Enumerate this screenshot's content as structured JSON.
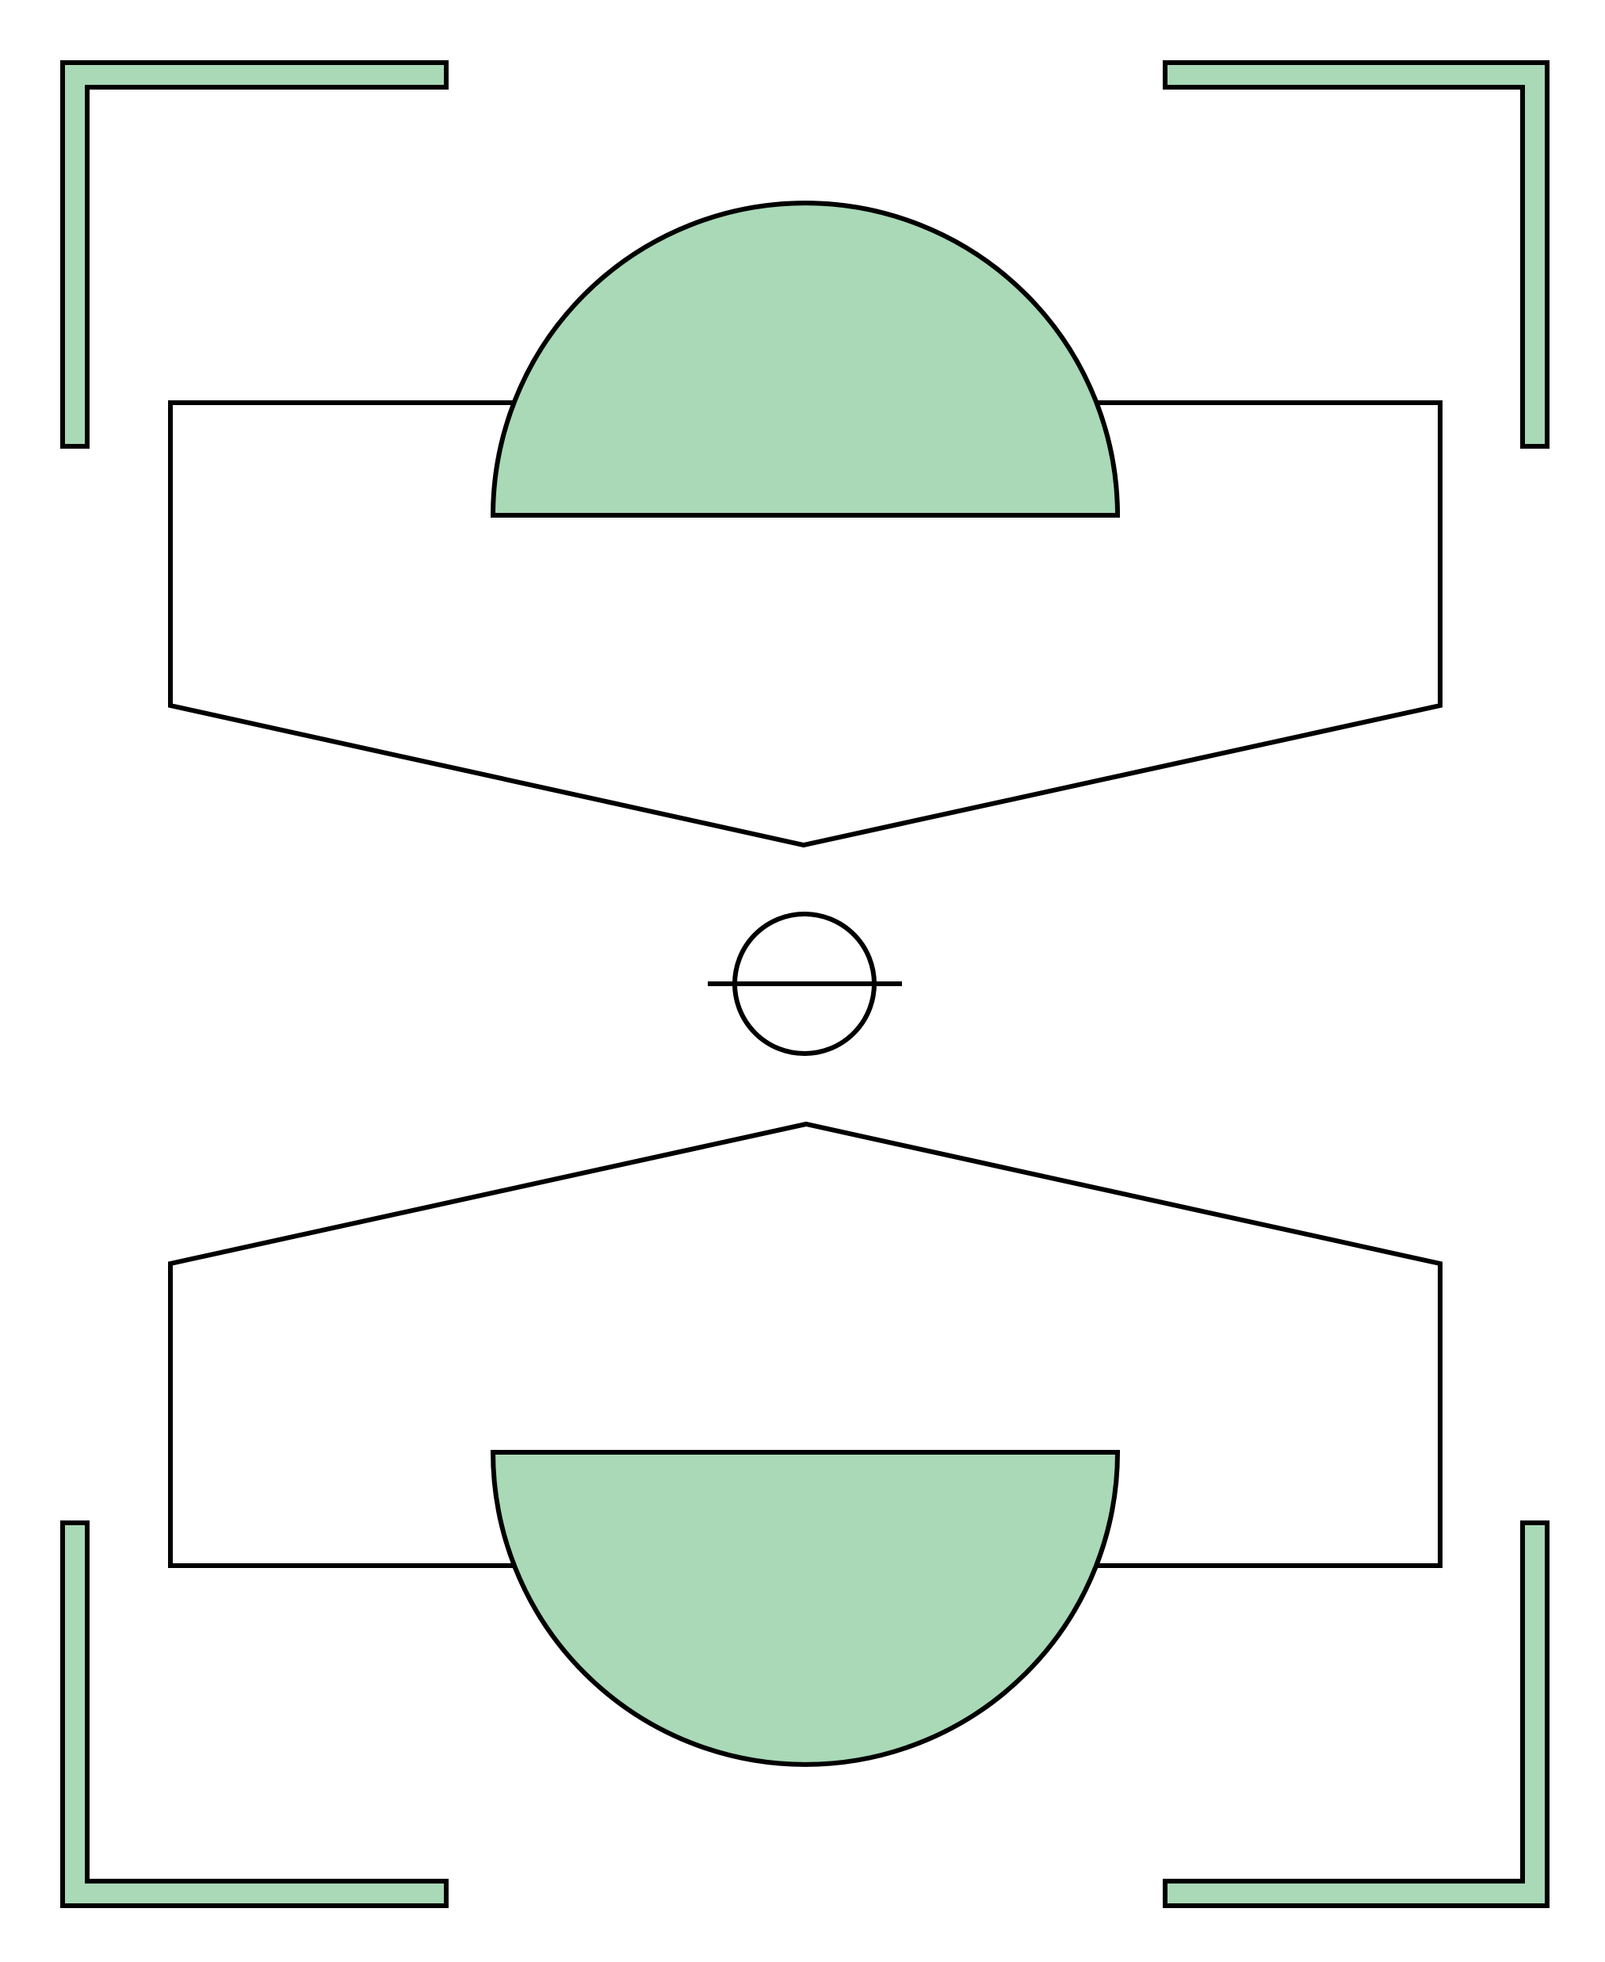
{
  "diagram": {
    "kind": "symmetric block diagram",
    "colors": {
      "background": "#ffffff",
      "stroke": "#000000",
      "accent_fill": "#a9d9b6"
    },
    "parts": [
      "corner-bracket-top-left",
      "corner-bracket-top-right",
      "corner-bracket-bottom-left",
      "corner-bracket-bottom-right",
      "upper-pentagon-block",
      "upper-half-disc",
      "center-theta-symbol",
      "lower-pentagon-block",
      "lower-half-disc"
    ]
  }
}
